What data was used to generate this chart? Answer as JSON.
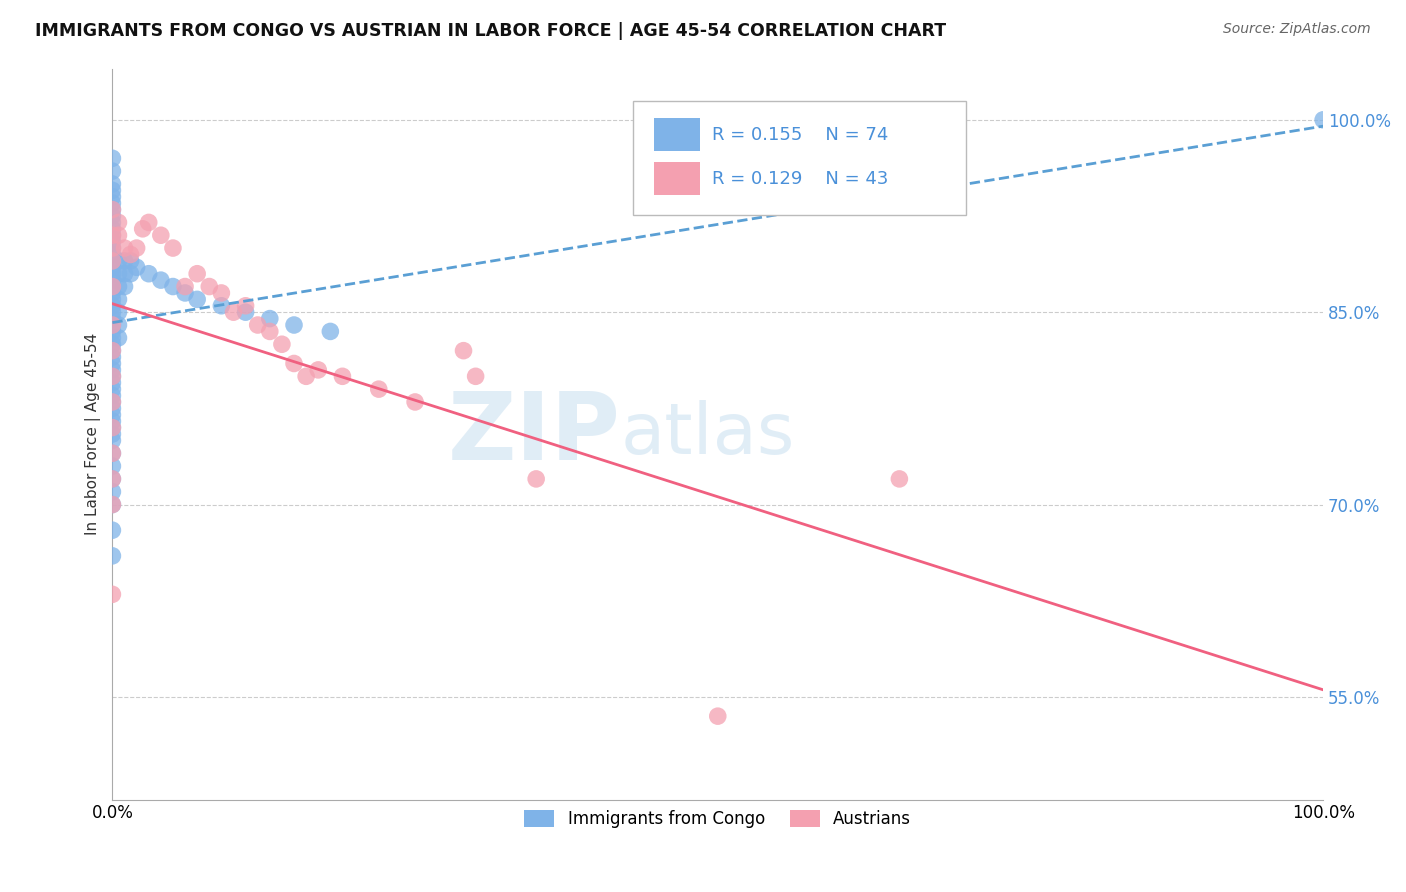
{
  "title": "IMMIGRANTS FROM CONGO VS AUSTRIAN IN LABOR FORCE | AGE 45-54 CORRELATION CHART",
  "source": "Source: ZipAtlas.com",
  "ylabel": "In Labor Force | Age 45-54",
  "xlim": [
    0.0,
    1.0
  ],
  "ylim": [
    0.47,
    1.04
  ],
  "yticks": [
    0.55,
    0.7,
    0.85,
    1.0
  ],
  "ytick_labels": [
    "55.0%",
    "70.0%",
    "85.0%",
    "100.0%"
  ],
  "xtick_labels": [
    "0.0%",
    "100.0%"
  ],
  "xticks": [
    0.0,
    1.0
  ],
  "color_blue": "#7fb3e8",
  "color_pink": "#f4a0b0",
  "color_blue_line": "#5a9fd4",
  "color_pink_line": "#f06080",
  "watermark_zip": "ZIP",
  "watermark_atlas": "atlas",
  "blue_x": [
    0.0,
    0.0,
    0.0,
    0.0,
    0.0,
    0.0,
    0.0,
    0.0,
    0.0,
    0.0,
    0.0,
    0.0,
    0.0,
    0.0,
    0.0,
    0.0,
    0.0,
    0.0,
    0.0,
    0.0,
    0.0,
    0.0,
    0.0,
    0.0,
    0.0,
    0.0,
    0.0,
    0.0,
    0.0,
    0.0,
    0.0,
    0.0,
    0.0,
    0.0,
    0.0,
    0.0,
    0.0,
    0.0,
    0.0,
    0.0,
    0.0,
    0.0,
    0.0,
    0.0,
    0.0,
    0.0,
    0.0,
    0.0,
    0.0,
    0.0,
    0.005,
    0.005,
    0.005,
    0.005,
    0.005,
    0.005,
    0.005,
    0.01,
    0.01,
    0.01,
    0.015,
    0.015,
    0.02,
    0.03,
    0.04,
    0.05,
    0.06,
    0.07,
    0.09,
    0.11,
    0.13,
    0.15,
    0.18,
    1.0
  ],
  "blue_y": [
    0.97,
    0.96,
    0.95,
    0.945,
    0.94,
    0.935,
    0.93,
    0.925,
    0.92,
    0.915,
    0.91,
    0.905,
    0.9,
    0.895,
    0.89,
    0.885,
    0.88,
    0.875,
    0.87,
    0.865,
    0.86,
    0.855,
    0.85,
    0.845,
    0.84,
    0.835,
    0.83,
    0.825,
    0.82,
    0.815,
    0.81,
    0.805,
    0.8,
    0.795,
    0.79,
    0.785,
    0.78,
    0.775,
    0.77,
    0.765,
    0.76,
    0.755,
    0.75,
    0.74,
    0.73,
    0.72,
    0.71,
    0.7,
    0.68,
    0.66,
    0.89,
    0.88,
    0.87,
    0.86,
    0.85,
    0.84,
    0.83,
    0.89,
    0.88,
    0.87,
    0.89,
    0.88,
    0.885,
    0.88,
    0.875,
    0.87,
    0.865,
    0.86,
    0.855,
    0.85,
    0.845,
    0.84,
    0.835,
    1.0
  ],
  "pink_x": [
    0.0,
    0.0,
    0.0,
    0.0,
    0.005,
    0.005,
    0.01,
    0.015,
    0.02,
    0.025,
    0.03,
    0.04,
    0.05,
    0.06,
    0.07,
    0.08,
    0.09,
    0.1,
    0.11,
    0.12,
    0.13,
    0.14,
    0.15,
    0.16,
    0.17,
    0.19,
    0.22,
    0.25,
    0.29,
    0.3,
    0.35,
    0.5,
    0.65,
    0.0,
    0.0,
    0.0,
    0.0,
    0.0,
    0.0,
    0.0,
    0.0,
    0.0,
    0.0
  ],
  "pink_y": [
    0.93,
    0.91,
    0.9,
    0.89,
    0.92,
    0.91,
    0.9,
    0.895,
    0.9,
    0.915,
    0.92,
    0.91,
    0.9,
    0.87,
    0.88,
    0.87,
    0.865,
    0.85,
    0.855,
    0.84,
    0.835,
    0.825,
    0.81,
    0.8,
    0.805,
    0.8,
    0.79,
    0.78,
    0.82,
    0.8,
    0.72,
    0.535,
    0.72,
    0.87,
    0.84,
    0.82,
    0.8,
    0.78,
    0.76,
    0.74,
    0.72,
    0.7,
    0.63
  ]
}
